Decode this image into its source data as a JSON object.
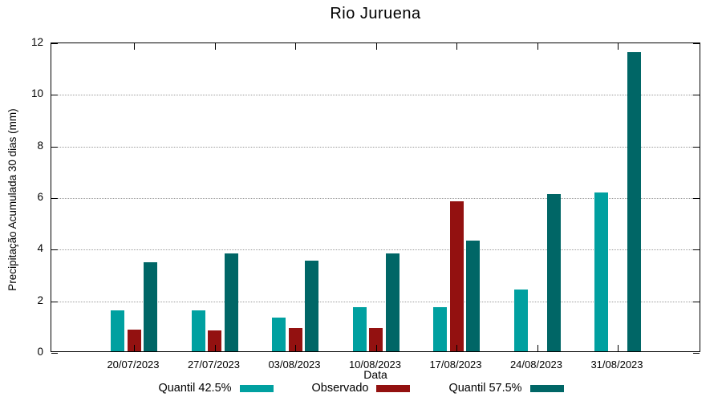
{
  "chart_data": {
    "type": "bar",
    "title": "Rio Juruena",
    "xlabel": "Data",
    "ylabel": "Precipitação Acumulada 30 dias (mm)",
    "ylim": [
      0,
      12
    ],
    "y_ticks": [
      0,
      2,
      4,
      6,
      8,
      10,
      12
    ],
    "grid": "horizontal-dotted",
    "grid_color": "#9c9c9c",
    "axis_color": "#000000",
    "background_color": "#ffffff",
    "legend_position": "bottom-center",
    "categories": [
      "20/07/2023",
      "27/07/2023",
      "03/08/2023",
      "10/08/2023",
      "17/08/2023",
      "24/08/2023",
      "31/08/2023"
    ],
    "series": [
      {
        "name": "Quantil 42.5%",
        "color": "#00A0A0",
        "values": [
          1.6,
          1.6,
          1.3,
          1.7,
          1.7,
          2.4,
          6.15
        ]
      },
      {
        "name": "Observado",
        "color": "#931110",
        "values": [
          0.85,
          0.8,
          0.9,
          0.9,
          5.8,
          null,
          null
        ]
      },
      {
        "name": "Quantil 57.5%",
        "color": "#006666",
        "values": [
          3.45,
          3.8,
          3.5,
          3.8,
          4.3,
          6.1,
          11.6
        ]
      }
    ]
  }
}
